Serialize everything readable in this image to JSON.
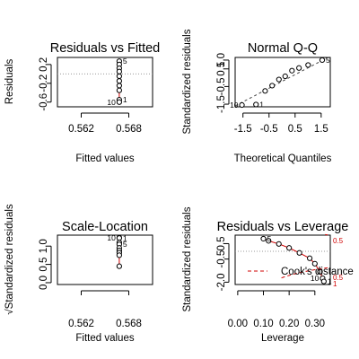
{
  "chart_data": [
    {
      "type": "scatter",
      "title": "Residuals vs Fitted",
      "xlabel": "Fitted values",
      "ylabel": "Residuals",
      "xlim": [
        0.559,
        0.571
      ],
      "ylim": [
        -0.7,
        0.35
      ],
      "xticks": [
        0.562,
        0.568
      ],
      "xtick_labels": [
        "0.562",
        "0.568"
      ],
      "yticks": [
        -0.6,
        -0.2,
        0.2
      ],
      "ytick_labels": [
        "-0.6",
        "-0.2",
        "0.2"
      ],
      "ref_y": 0,
      "points": [
        {
          "x": 0.5668,
          "y": 0.27,
          "label": "5"
        },
        {
          "x": 0.5668,
          "y": 0.2,
          "label": ""
        },
        {
          "x": 0.5668,
          "y": 0.12,
          "label": ""
        },
        {
          "x": 0.5668,
          "y": 0.05,
          "label": ""
        },
        {
          "x": 0.5668,
          "y": -0.05,
          "label": ""
        },
        {
          "x": 0.5668,
          "y": -0.15,
          "label": ""
        },
        {
          "x": 0.5668,
          "y": -0.25,
          "label": ""
        },
        {
          "x": 0.5668,
          "y": -0.35,
          "label": ""
        },
        {
          "x": 0.5668,
          "y": -0.55,
          "label": "1"
        },
        {
          "x": 0.5668,
          "y": -0.6,
          "label": "10"
        }
      ],
      "point_labels": [
        "5",
        "1",
        "10"
      ]
    },
    {
      "type": "scatter",
      "title": "Normal Q-Q",
      "xlabel": "Theoretical Quantiles",
      "ylabel": "Standardized residuals",
      "xlim": [
        -1.8,
        1.85
      ],
      "ylim": [
        -1.65,
        1.15
      ],
      "xticks": [
        -1.5,
        -0.5,
        0.5,
        1.5
      ],
      "xtick_labels": [
        "-1.5",
        "-0.5",
        "0.5",
        "1.5"
      ],
      "yticks": [
        -1.5,
        -0.5,
        0.5,
        1.0
      ],
      "ytick_labels": [
        "-1.5",
        "-0.5",
        "0.5",
        "1.0"
      ],
      "points": [
        {
          "x": -1.54,
          "y": -1.55,
          "label": "10"
        },
        {
          "x": -1.0,
          "y": -1.52,
          "label": "1"
        },
        {
          "x": -0.65,
          "y": -0.75,
          "label": ""
        },
        {
          "x": -0.38,
          "y": -0.45,
          "label": ""
        },
        {
          "x": -0.12,
          "y": -0.1,
          "label": ""
        },
        {
          "x": 0.12,
          "y": 0.08,
          "label": ""
        },
        {
          "x": 0.38,
          "y": 0.4,
          "label": ""
        },
        {
          "x": 0.65,
          "y": 0.55,
          "label": ""
        },
        {
          "x": 1.0,
          "y": 0.72,
          "label": ""
        },
        {
          "x": 1.54,
          "y": 1.0,
          "label": "5"
        }
      ],
      "point_labels": [
        "10",
        "1",
        "5"
      ],
      "qqline": [
        [
          -1.8,
          -1.6
        ],
        [
          1.85,
          1.22
        ]
      ]
    },
    {
      "type": "scatter",
      "title": "Scale-Location",
      "xlabel": "Fitted values",
      "ylabel": "√Standardized residuals",
      "xlim": [
        0.559,
        0.571
      ],
      "ylim": [
        -0.05,
        1.3
      ],
      "xticks": [
        0.562,
        0.568
      ],
      "xtick_labels": [
        "0.562",
        "0.568"
      ],
      "yticks": [
        0.0,
        0.5,
        1.0
      ],
      "ytick_labels": [
        "0.0",
        "0.5",
        "1.0"
      ],
      "points": [
        {
          "x": 0.5668,
          "y": 1.23,
          "label": "10"
        },
        {
          "x": 0.5668,
          "y": 1.22,
          "label": "1"
        },
        {
          "x": 0.5668,
          "y": 1.1,
          "label": ""
        },
        {
          "x": 0.5668,
          "y": 1.05,
          "label": "5"
        },
        {
          "x": 0.5668,
          "y": 0.95,
          "label": ""
        },
        {
          "x": 0.5668,
          "y": 0.88,
          "label": ""
        },
        {
          "x": 0.5668,
          "y": 0.82,
          "label": ""
        },
        {
          "x": 0.5668,
          "y": 0.75,
          "label": ""
        },
        {
          "x": 0.5668,
          "y": 0.45,
          "label": ""
        }
      ],
      "point_labels": [
        "10",
        "1",
        "5"
      ]
    },
    {
      "type": "scatter",
      "title": "Residuals vs Leverage",
      "xlabel": "Leverage",
      "ylabel": "Standardized residuals",
      "xlim": [
        -0.01,
        0.36
      ],
      "ylim": [
        -2.15,
        1.05
      ],
      "xticks": [
        0.0,
        0.1,
        0.2,
        0.3
      ],
      "xtick_labels": [
        "0.00",
        "0.10",
        "0.20",
        "0.30"
      ],
      "yticks": [
        -2.0,
        -0.5,
        0.5
      ],
      "ytick_labels": [
        "-2.0",
        "-0.5",
        "0.5"
      ],
      "ref_y": 0,
      "points": [
        {
          "x": 0.1,
          "y": 0.82,
          "label": "5"
        },
        {
          "x": 0.12,
          "y": 0.68,
          "label": ""
        },
        {
          "x": 0.16,
          "y": 0.48,
          "label": ""
        },
        {
          "x": 0.2,
          "y": 0.22,
          "label": ""
        },
        {
          "x": 0.24,
          "y": -0.1,
          "label": ""
        },
        {
          "x": 0.28,
          "y": -0.45,
          "label": ""
        },
        {
          "x": 0.3,
          "y": -0.8,
          "label": ""
        },
        {
          "x": 0.32,
          "y": -1.32,
          "label": ""
        },
        {
          "x": 0.33,
          "y": -1.75,
          "label": "10"
        },
        {
          "x": 0.335,
          "y": -1.95,
          "label": "1"
        }
      ],
      "point_labels": [
        "5",
        "10",
        "1"
      ],
      "legend": "Cook's distance",
      "legend_position": "right",
      "cook_labels": [
        "0.5",
        "0.5",
        "1"
      ]
    }
  ]
}
